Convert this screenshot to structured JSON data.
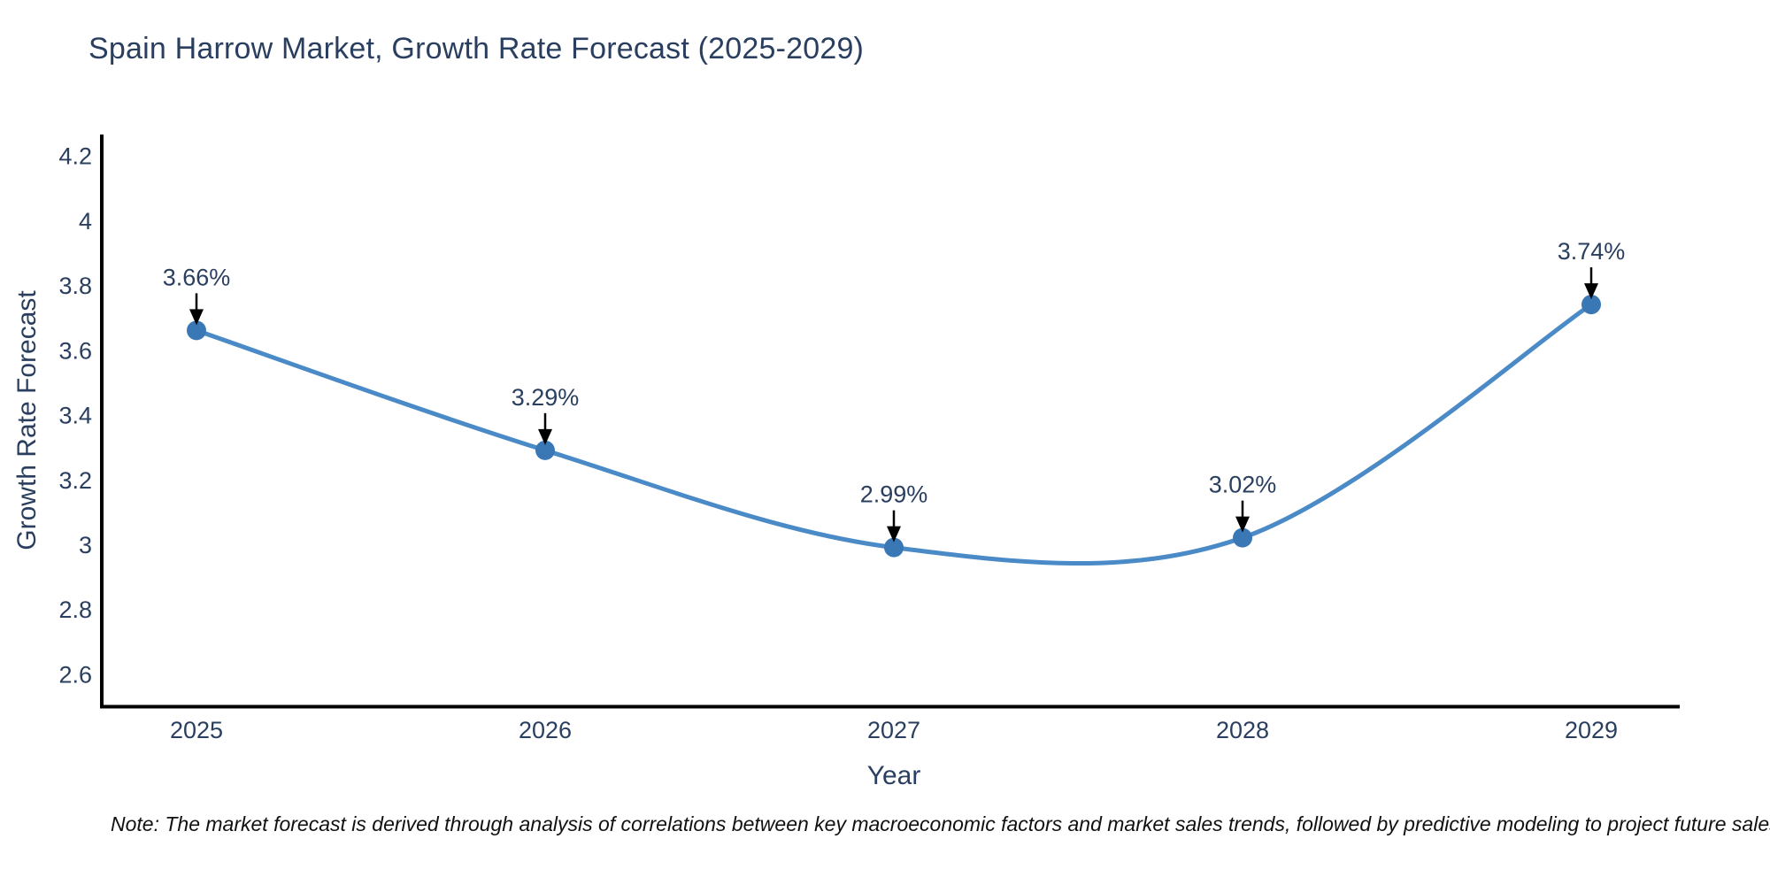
{
  "title": "Spain Harrow Market, Growth Rate Forecast (2025-2029)",
  "note": "Note: The market forecast is derived through analysis of correlations between key macroeconomic factors and market sales trends, followed by predictive modeling to project future sales",
  "chart_data": {
    "type": "line",
    "title": "Spain Harrow Market, Growth Rate Forecast (2025-2029)",
    "xlabel": "Year",
    "ylabel": "Growth Rate Forecast",
    "x": [
      2025,
      2026,
      2027,
      2028,
      2029
    ],
    "series": [
      {
        "name": "Growth Rate Forecast",
        "values": [
          3.66,
          3.29,
          2.99,
          3.02,
          3.74
        ],
        "point_labels": [
          "3.66%",
          "3.29%",
          "2.99%",
          "3.02%",
          "3.74%"
        ]
      }
    ],
    "line_shape": "spline",
    "markers": true,
    "grid": false,
    "legend": "none",
    "x_tick_labels": [
      "2025",
      "2026",
      "2027",
      "2028",
      "2029"
    ],
    "y_tick_labels": [
      "4.2",
      "4",
      "3.8",
      "3.6",
      "3.4",
      "3.2",
      "3",
      "2.8",
      "2.6"
    ],
    "y_tick_values": [
      4.2,
      4.0,
      3.8,
      3.6,
      3.4,
      3.2,
      3.0,
      2.8,
      2.6
    ],
    "ylim": [
      2.5,
      4.25
    ],
    "colors": {
      "line": "#4a8ac6",
      "marker": "#3a78b5",
      "axis_line": "#000000",
      "chart_text": "#2a3f5f",
      "annotation_arrow": "#000000",
      "background": "#ffffff"
    }
  }
}
